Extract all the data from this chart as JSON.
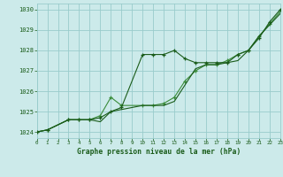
{
  "title": "Graphe pression niveau de la mer (hPa)",
  "background_color": "#cceaea",
  "grid_color": "#99cccc",
  "line_color_dark": "#1a5c1a",
  "line_color_mid": "#3a8c3a",
  "xlim": [
    0,
    23
  ],
  "ylim": [
    1023.7,
    1030.3
  ],
  "yticks": [
    1024,
    1025,
    1026,
    1027,
    1028,
    1029,
    1030
  ],
  "xticks": [
    0,
    1,
    2,
    3,
    4,
    5,
    6,
    7,
    8,
    9,
    10,
    11,
    12,
    13,
    14,
    15,
    16,
    17,
    18,
    19,
    20,
    21,
    22,
    23
  ],
  "series1_x": [
    0,
    1,
    3,
    4,
    5,
    6,
    7,
    8,
    10,
    11,
    12,
    13,
    14,
    15,
    16,
    17,
    18,
    19,
    20,
    21,
    22,
    23
  ],
  "series1_y": [
    1024.0,
    1024.1,
    1024.6,
    1024.6,
    1024.6,
    1024.7,
    1025.0,
    1025.2,
    1027.8,
    1027.8,
    1027.8,
    1028.0,
    1027.6,
    1027.4,
    1027.4,
    1027.4,
    1027.4,
    1027.8,
    1028.0,
    1028.6,
    1029.4,
    1030.0
  ],
  "series2_x": [
    0,
    1,
    3,
    4,
    5,
    6,
    7,
    8,
    10,
    11,
    12,
    13,
    14,
    15,
    16,
    17,
    18,
    19,
    20,
    21,
    22,
    23
  ],
  "series2_y": [
    1024.0,
    1024.1,
    1024.6,
    1024.6,
    1024.6,
    1024.8,
    1025.7,
    1025.3,
    1025.3,
    1025.3,
    1025.4,
    1025.7,
    1026.5,
    1027.0,
    1027.3,
    1027.3,
    1027.5,
    1027.8,
    1028.0,
    1028.7,
    1029.3,
    1029.9
  ],
  "series3_x": [
    0,
    1,
    3,
    4,
    5,
    6,
    7,
    8,
    10,
    11,
    12,
    13,
    14,
    15,
    16,
    17,
    18,
    19,
    20,
    21,
    22,
    23
  ],
  "series3_y": [
    1024.0,
    1024.1,
    1024.6,
    1024.6,
    1024.6,
    1024.5,
    1025.0,
    1025.1,
    1025.3,
    1025.3,
    1025.3,
    1025.5,
    1026.3,
    1027.1,
    1027.3,
    1027.3,
    1027.4,
    1027.5,
    1028.0,
    1028.7,
    1029.25,
    1029.8
  ]
}
